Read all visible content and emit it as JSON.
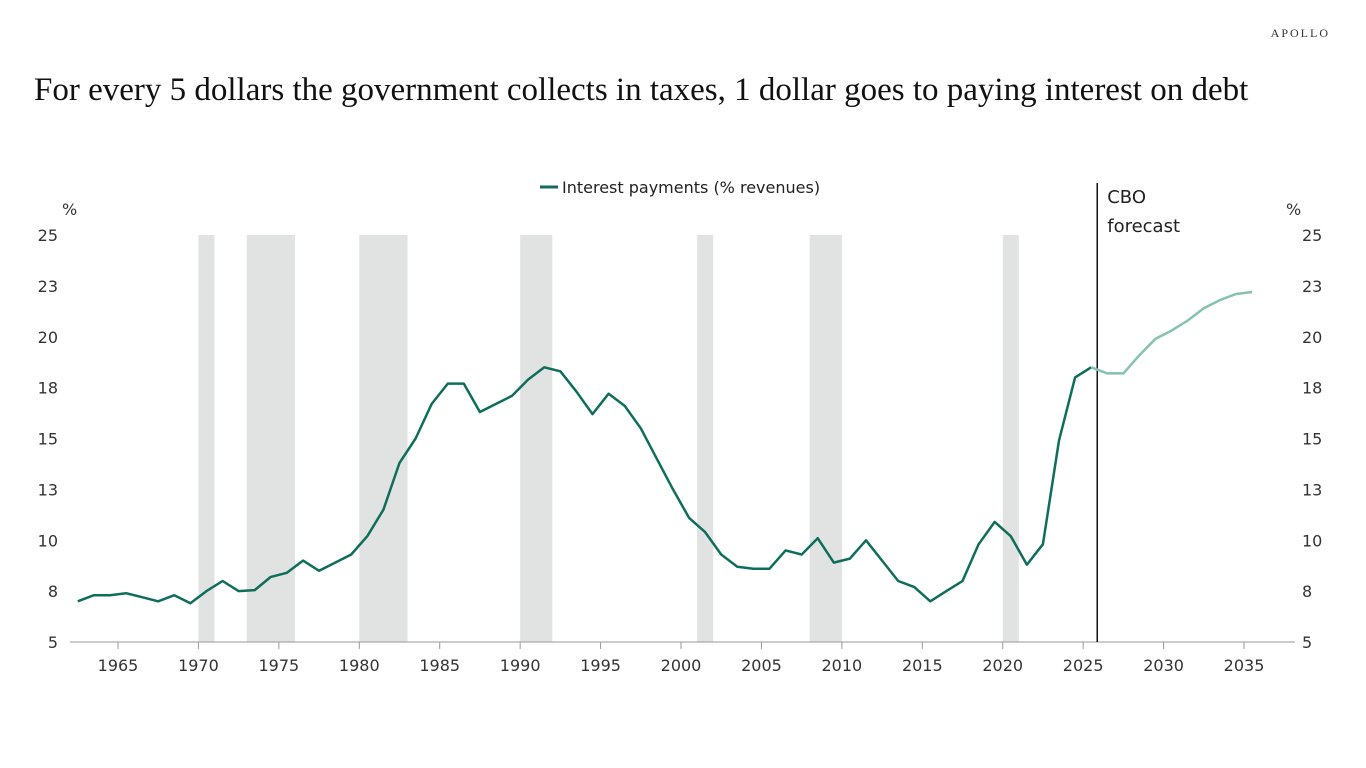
{
  "brand": "APOLLO",
  "title": "For every 5 dollars the government collects in taxes, 1 dollar goes to paying interest on debt",
  "chart_data": {
    "type": "line",
    "title": "For every 5 dollars the government collects in taxes, 1 dollar goes to paying interest on debt",
    "ylabel_left": "%",
    "ylabel_right": "%",
    "ylim": [
      5,
      25
    ],
    "y_ticks": [
      5,
      7.5,
      10,
      12.5,
      15,
      17.5,
      20,
      22.5,
      25
    ],
    "y_tick_labels": [
      "5",
      "8",
      "10",
      "13",
      "15",
      "18",
      "20",
      "23",
      "25"
    ],
    "xlim": [
      1962,
      2038
    ],
    "x_ticks": [
      1965,
      1970,
      1975,
      1980,
      1985,
      1990,
      1995,
      2000,
      2005,
      2010,
      2015,
      2020,
      2025,
      2030,
      2035
    ],
    "x_tick_labels": [
      "1965",
      "1970",
      "1975",
      "1980",
      "1985",
      "1990",
      "1995",
      "2000",
      "2005",
      "2010",
      "2015",
      "2020",
      "2025",
      "2030",
      "2035"
    ],
    "legend": "top-center",
    "grid": false,
    "series": [
      {
        "name": "Interest payments (% revenues)",
        "color": "#0f6e5b",
        "forecast_color": "#86c1b1",
        "x": [
          1962,
          1963,
          1964,
          1965,
          1966,
          1967,
          1968,
          1969,
          1970,
          1971,
          1972,
          1973,
          1974,
          1975,
          1976,
          1977,
          1978,
          1979,
          1980,
          1981,
          1982,
          1983,
          1984,
          1985,
          1986,
          1987,
          1988,
          1989,
          1990,
          1991,
          1992,
          1993,
          1994,
          1995,
          1996,
          1997,
          1998,
          1999,
          2000,
          2001,
          2002,
          2003,
          2004,
          2005,
          2006,
          2007,
          2008,
          2009,
          2010,
          2011,
          2012,
          2013,
          2014,
          2015,
          2016,
          2017,
          2018,
          2019,
          2020,
          2021,
          2022,
          2023,
          2024,
          2025,
          2026,
          2027,
          2028,
          2029,
          2030,
          2031,
          2032,
          2033,
          2034,
          2035
        ],
        "y": [
          7.0,
          7.3,
          7.3,
          7.4,
          7.2,
          7.0,
          7.3,
          6.9,
          7.5,
          8.0,
          7.5,
          7.55,
          8.2,
          8.4,
          9.0,
          8.5,
          8.9,
          9.3,
          10.2,
          11.5,
          13.8,
          15.0,
          16.7,
          17.7,
          17.7,
          16.3,
          16.7,
          17.1,
          17.9,
          18.5,
          18.3,
          17.3,
          16.2,
          17.2,
          16.6,
          15.5,
          14.0,
          12.5,
          11.1,
          10.4,
          9.3,
          8.7,
          8.6,
          8.6,
          9.5,
          9.3,
          10.1,
          8.9,
          9.1,
          10.0,
          9.0,
          8.0,
          7.7,
          7.0,
          7.5,
          8.0,
          9.8,
          10.9,
          10.2,
          8.8,
          9.8,
          14.9,
          18.0,
          18.5,
          18.2,
          18.2,
          19.1,
          19.9,
          20.3,
          20.8,
          21.4,
          21.8,
          22.1,
          22.2
        ],
        "forecast_from": 2025
      }
    ],
    "recessions": [
      [
        1970,
        1971
      ],
      [
        1973,
        1976
      ],
      [
        1980,
        1983
      ],
      [
        1990,
        1992
      ],
      [
        2001,
        2002
      ],
      [
        2008,
        2010
      ],
      [
        2020,
        2021
      ]
    ],
    "shading_color": "#e1e3e2",
    "annotations": [
      {
        "text_line1": "CBO",
        "text_line2": "forecast",
        "x": 2026
      }
    ]
  }
}
